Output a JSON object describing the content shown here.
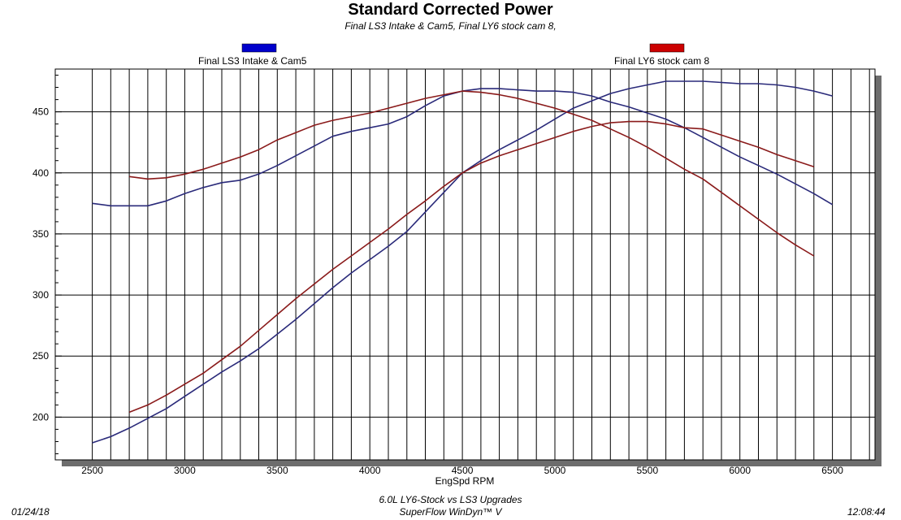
{
  "header": {
    "title": "Standard Corrected Power",
    "subtitle": "Final LS3 Intake & Cam5, Final LY6 stock cam 8,"
  },
  "footer": {
    "date": "01/24/18",
    "line1": "6.0L LY6-Stock vs LS3 Upgrades",
    "line2": "SuperFlow WinDyn™ V",
    "time": "12:08:44"
  },
  "chart_data": {
    "type": "line",
    "title": "Standard Corrected Power",
    "xlabel": "EngSpd RPM",
    "ylabel": "",
    "xlim": [
      2300,
      6730
    ],
    "ylim": [
      165,
      485
    ],
    "xticks": [
      2500,
      3000,
      3500,
      4000,
      4500,
      5000,
      5500,
      6000,
      6500
    ],
    "yticks": [
      200,
      250,
      300,
      350,
      400,
      450
    ],
    "grid": true,
    "legend": "top",
    "series": [
      {
        "name": "Final LS3 Intake & Cam5",
        "color": "#0000cc",
        "line_color": "#2a2a7a",
        "curves": [
          {
            "x": [
              2500,
              2600,
              2700,
              2800,
              2900,
              3000,
              3100,
              3200,
              3300,
              3400,
              3500,
              3600,
              3700,
              3800,
              3900,
              4000,
              4100,
              4200,
              4300,
              4400,
              4500,
              4600,
              4700,
              4800,
              4900,
              5000,
              5100,
              5200,
              5300,
              5400,
              5500,
              5600,
              5700,
              5800,
              5900,
              6000,
              6100,
              6200,
              6300,
              6400,
              6500
            ],
            "y": [
              375,
              373,
              373,
              373,
              377,
              383,
              388,
              392,
              394,
              399,
              406,
              414,
              422,
              430,
              434,
              437,
              440,
              446,
              455,
              463,
              467,
              469,
              469,
              468,
              467,
              467,
              466,
              463,
              458,
              454,
              449,
              444,
              437,
              429,
              421,
              413,
              406,
              399,
              391,
              383,
              374
            ]
          },
          {
            "x": [
              2500,
              2600,
              2700,
              2800,
              2900,
              3000,
              3100,
              3200,
              3300,
              3400,
              3500,
              3600,
              3700,
              3800,
              3900,
              4000,
              4100,
              4200,
              4300,
              4400,
              4500,
              4600,
              4700,
              4800,
              4900,
              5000,
              5100,
              5200,
              5300,
              5400,
              5500,
              5600,
              5700,
              5800,
              5900,
              6000,
              6100,
              6200,
              6300,
              6400,
              6500
            ],
            "y": [
              179,
              184,
              191,
              199,
              207,
              217,
              227,
              237,
              246,
              256,
              268,
              280,
              293,
              306,
              318,
              329,
              340,
              352,
              368,
              384,
              400,
              410,
              419,
              427,
              435,
              444,
              453,
              459,
              465,
              469,
              472,
              475,
              475,
              475,
              474,
              473,
              473,
              472,
              470,
              467,
              463
            ]
          }
        ]
      },
      {
        "name": "Final LY6 stock cam 8",
        "color": "#cc0000",
        "line_color": "#8a1a1a",
        "curves": [
          {
            "x": [
              2700,
              2800,
              2900,
              3000,
              3100,
              3200,
              3300,
              3400,
              3500,
              3600,
              3700,
              3800,
              3900,
              4000,
              4100,
              4200,
              4300,
              4400,
              4500,
              4600,
              4700,
              4800,
              4900,
              5000,
              5100,
              5200,
              5300,
              5400,
              5500,
              5600,
              5700,
              5800,
              5900,
              6000,
              6100,
              6200,
              6300,
              6400
            ],
            "y": [
              397,
              395,
              396,
              399,
              403,
              408,
              413,
              419,
              427,
              433,
              439,
              443,
              446,
              449,
              453,
              457,
              461,
              464,
              467,
              466,
              464,
              461,
              457,
              453,
              448,
              443,
              436,
              429,
              421,
              412,
              403,
              395,
              384,
              373,
              362,
              351,
              341,
              332
            ]
          },
          {
            "x": [
              2700,
              2800,
              2900,
              3000,
              3100,
              3200,
              3300,
              3400,
              3500,
              3600,
              3700,
              3800,
              3900,
              4000,
              4100,
              4200,
              4300,
              4400,
              4500,
              4600,
              4700,
              4800,
              4900,
              5000,
              5100,
              5200,
              5300,
              5400,
              5500,
              5600,
              5700,
              5800,
              5900,
              6000,
              6100,
              6200,
              6300,
              6400
            ],
            "y": [
              204,
              210,
              218,
              227,
              236,
              247,
              258,
              271,
              284,
              297,
              309,
              321,
              332,
              343,
              354,
              366,
              377,
              389,
              400,
              408,
              414,
              419,
              424,
              429,
              434,
              438,
              441,
              442,
              442,
              440,
              437,
              436,
              431,
              426,
              421,
              415,
              410,
              405
            ]
          }
        ]
      }
    ]
  }
}
